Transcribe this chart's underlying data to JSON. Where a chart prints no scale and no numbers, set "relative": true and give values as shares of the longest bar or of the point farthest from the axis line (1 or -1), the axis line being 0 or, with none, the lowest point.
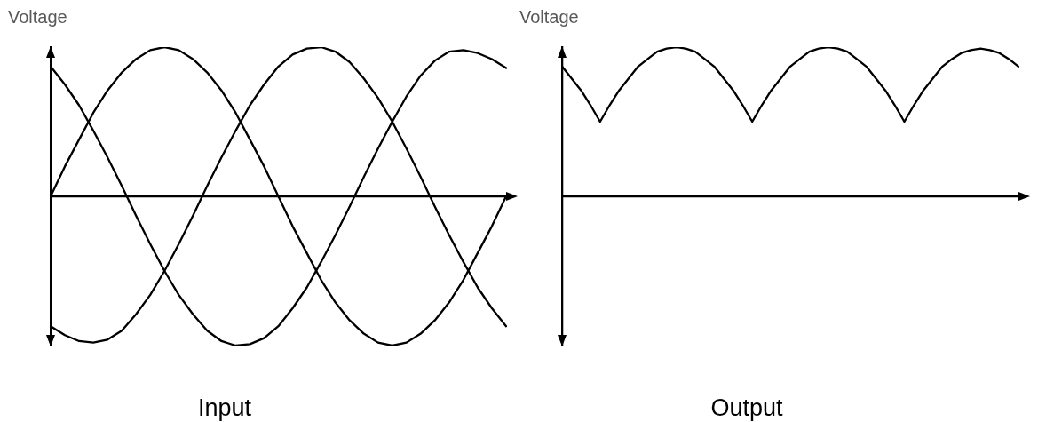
{
  "chart_data": [
    {
      "type": "line",
      "title": "Input",
      "ylabel": "Voltage",
      "relative": true,
      "marker": "none",
      "categories": [
        null,
        null,
        null,
        null,
        null,
        null,
        null,
        null,
        null,
        null,
        null,
        null,
        null,
        null,
        null,
        null,
        null,
        null,
        null,
        null,
        null,
        null,
        null,
        null,
        null,
        null,
        null,
        null,
        null,
        null,
        null,
        null,
        null
      ],
      "series": [
        {
          "color": "#000000",
          "values": [
            0,
            0.2,
            0.38,
            0.56,
            0.71,
            0.83,
            0.92,
            0.98,
            1,
            0.98,
            0.92,
            0.83,
            0.71,
            0.56,
            0.38,
            0.2,
            0,
            -0.2,
            -0.38,
            -0.56,
            -0.71,
            -0.83,
            -0.92,
            -0.98,
            -1,
            -0.98,
            -0.92,
            -0.83,
            -0.71,
            -0.56,
            -0.38,
            -0.2,
            0
          ]
        },
        {
          "color": "#000000",
          "values": [
            0.87,
            0.75,
            0.61,
            0.44,
            0.26,
            0.07,
            -0.13,
            -0.32,
            -0.5,
            -0.66,
            -0.79,
            -0.9,
            -0.97,
            -1,
            -0.99,
            -0.95,
            -0.87,
            -0.75,
            -0.61,
            -0.44,
            -0.26,
            -0.07,
            0.13,
            0.32,
            0.5,
            0.67,
            0.81,
            0.91,
            0.97,
            0.98,
            0.96,
            0.92,
            0.86
          ]
        },
        {
          "color": "#000000",
          "values": [
            -0.87,
            -0.93,
            -0.97,
            -0.98,
            -0.96,
            -0.9,
            -0.79,
            -0.66,
            -0.5,
            -0.32,
            -0.13,
            0.07,
            0.26,
            0.44,
            0.61,
            0.75,
            0.87,
            0.95,
            0.99,
            1,
            0.97,
            0.9,
            0.79,
            0.66,
            0.5,
            0.32,
            0.13,
            -0.07,
            -0.26,
            -0.44,
            -0.61,
            -0.75,
            -0.87
          ]
        }
      ]
    },
    {
      "type": "line",
      "title": "Output",
      "ylabel": "Voltage",
      "relative": true,
      "marker": "none",
      "categories": [
        null,
        null,
        null,
        null,
        null,
        null,
        null,
        null,
        null,
        null,
        null,
        null,
        null,
        null,
        null,
        null,
        null,
        null,
        null,
        null,
        null,
        null,
        null,
        null,
        null,
        null,
        null,
        null,
        null,
        null,
        null,
        null,
        null,
        null,
        null,
        null,
        null,
        null,
        null,
        null,
        null,
        null,
        null,
        null,
        null,
        null,
        null,
        null,
        null
      ],
      "series": [
        {
          "color": "#000000",
          "values": [
            0.87,
            0.79,
            0.71,
            0.61,
            0.5,
            0.61,
            0.71,
            0.79,
            0.87,
            0.92,
            0.97,
            0.99,
            1,
            0.99,
            0.97,
            0.92,
            0.87,
            0.79,
            0.71,
            0.61,
            0.5,
            0.61,
            0.71,
            0.79,
            0.87,
            0.92,
            0.97,
            0.99,
            1,
            0.99,
            0.97,
            0.92,
            0.87,
            0.79,
            0.71,
            0.61,
            0.5,
            0.61,
            0.71,
            0.79,
            0.87,
            0.92,
            0.96,
            0.98,
            0.99,
            0.98,
            0.96,
            0.92,
            0.87
          ]
        }
      ]
    }
  ]
}
